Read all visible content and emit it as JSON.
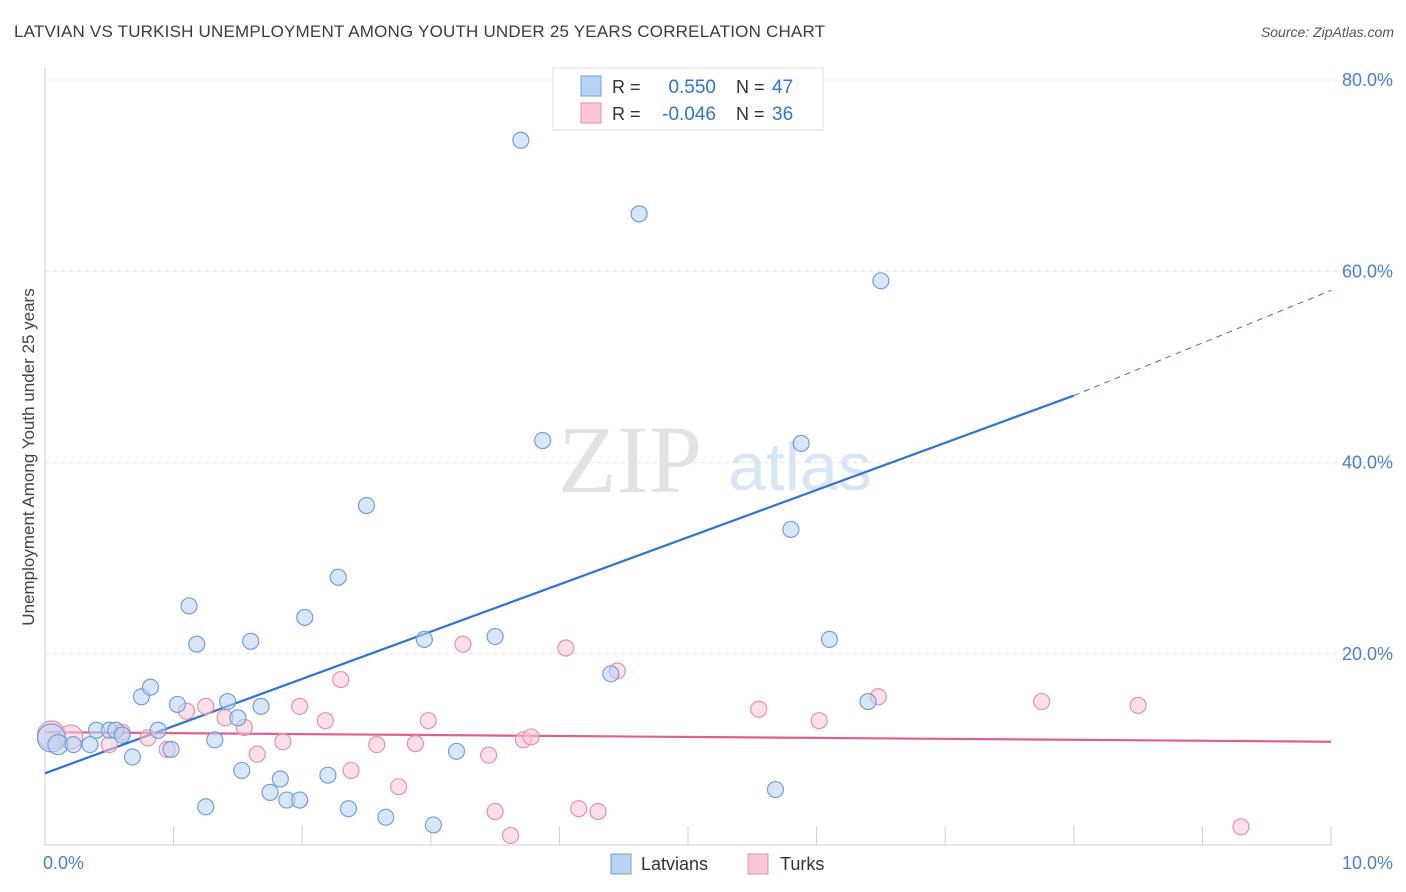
{
  "title": "LATVIAN VS TURKISH UNEMPLOYMENT AMONG YOUTH UNDER 25 YEARS CORRELATION CHART",
  "source": "Source: ZipAtlas.com",
  "watermark": {
    "zip": "ZIP",
    "atlas": "atlas"
  },
  "colors": {
    "blue": "#6f9fdc",
    "blue_fill": "#b9d2f3",
    "blue_line": "#2f74d0",
    "pink": "#ea8fae",
    "pink_fill": "#f8c6d6",
    "pink_line": "#e0608a",
    "tick_text": "#4a7fcf",
    "grid": "#e3e3e3"
  },
  "legend": {
    "r_label": "R =",
    "n_label": "N =",
    "rows": [
      {
        "name": "Latvians",
        "r": "0.550",
        "n": "47"
      },
      {
        "name": "Turks",
        "r": "-0.046",
        "n": "36"
      }
    ]
  },
  "chart_data": {
    "type": "scatter",
    "title": "LATVIAN VS TURKISH UNEMPLOYMENT AMONG YOUTH UNDER 25 YEARS CORRELATION CHART",
    "xlabel": "",
    "ylabel": "Unemployment Among Youth under 25 years",
    "xlim": [
      0,
      10
    ],
    "ylim": [
      0,
      80
    ],
    "x_tick_labels": [
      {
        "value": 0,
        "label": "0.0%"
      },
      {
        "value": 10,
        "label": "10.0%"
      }
    ],
    "y_tick_labels": [
      {
        "value": 20,
        "label": "20.0%"
      },
      {
        "value": 40,
        "label": "40.0%"
      },
      {
        "value": 60,
        "label": "60.0%"
      },
      {
        "value": 80,
        "label": "80.0%"
      }
    ],
    "series": [
      {
        "name": "Latvians",
        "color": "blue",
        "trend": {
          "x0": 0,
          "y0": 7.5,
          "x1": 8.0,
          "y1": 47.0,
          "dash_to_x": 10,
          "dash_to_y": 58.0
        },
        "points": [
          [
            0.05,
            11.2,
            14
          ],
          [
            0.1,
            10.5,
            10
          ],
          [
            0.22,
            10.5,
            8
          ],
          [
            0.35,
            10.5,
            8
          ],
          [
            0.4,
            12.0,
            8
          ],
          [
            0.5,
            12.0,
            8
          ],
          [
            0.55,
            12.0,
            8
          ],
          [
            0.6,
            11.5,
            8
          ],
          [
            0.68,
            9.2,
            8
          ],
          [
            0.75,
            15.5,
            8
          ],
          [
            0.82,
            16.5,
            8
          ],
          [
            0.88,
            12.0,
            8
          ],
          [
            0.98,
            10.0,
            8
          ],
          [
            1.03,
            14.7,
            8
          ],
          [
            1.12,
            25.0,
            8
          ],
          [
            1.18,
            21.0,
            8
          ],
          [
            1.25,
            4.0,
            8
          ],
          [
            1.32,
            11.0,
            8
          ],
          [
            1.42,
            15.0,
            8
          ],
          [
            1.5,
            13.3,
            8
          ],
          [
            1.53,
            7.8,
            8
          ],
          [
            1.6,
            21.3,
            8
          ],
          [
            1.68,
            14.5,
            8
          ],
          [
            1.75,
            5.5,
            8
          ],
          [
            1.83,
            6.9,
            8
          ],
          [
            1.88,
            4.7,
            8
          ],
          [
            1.98,
            4.7,
            8
          ],
          [
            2.02,
            23.8,
            8
          ],
          [
            2.2,
            7.3,
            8
          ],
          [
            2.28,
            28.0,
            8
          ],
          [
            2.36,
            3.8,
            8
          ],
          [
            2.5,
            35.5,
            8
          ],
          [
            2.65,
            2.9,
            8
          ],
          [
            2.95,
            21.5,
            8
          ],
          [
            3.02,
            2.1,
            8
          ],
          [
            3.2,
            9.8,
            8
          ],
          [
            3.5,
            21.8,
            8
          ],
          [
            3.7,
            73.7,
            8
          ],
          [
            3.87,
            42.3,
            8
          ],
          [
            4.4,
            17.9,
            8
          ],
          [
            4.62,
            66.0,
            8
          ],
          [
            5.68,
            5.8,
            8
          ],
          [
            5.8,
            33.0,
            8
          ],
          [
            5.88,
            42.0,
            8
          ],
          [
            6.1,
            21.5,
            8
          ],
          [
            6.4,
            15.0,
            8
          ],
          [
            6.5,
            59.0,
            8
          ]
        ]
      },
      {
        "name": "Turks",
        "color": "pink",
        "trend": {
          "x0": 0,
          "y0": 11.8,
          "x1": 10,
          "y1": 10.8
        },
        "points": [
          [
            0.05,
            11.5,
            14
          ],
          [
            0.2,
            11.3,
            12
          ],
          [
            0.5,
            10.5,
            8
          ],
          [
            0.6,
            11.8,
            8
          ],
          [
            0.8,
            11.2,
            8
          ],
          [
            0.95,
            10.0,
            8
          ],
          [
            1.1,
            14.0,
            8
          ],
          [
            1.25,
            14.5,
            8
          ],
          [
            1.4,
            13.3,
            8
          ],
          [
            1.55,
            12.3,
            8
          ],
          [
            1.65,
            9.5,
            8
          ],
          [
            1.85,
            10.8,
            8
          ],
          [
            1.98,
            14.5,
            8
          ],
          [
            2.18,
            13.0,
            8
          ],
          [
            2.3,
            17.3,
            8
          ],
          [
            2.38,
            7.8,
            8
          ],
          [
            2.58,
            10.5,
            8
          ],
          [
            2.75,
            6.1,
            8
          ],
          [
            2.88,
            10.6,
            8
          ],
          [
            2.98,
            13.0,
            8
          ],
          [
            3.25,
            21.0,
            8
          ],
          [
            3.45,
            9.4,
            8
          ],
          [
            3.5,
            3.5,
            8
          ],
          [
            3.62,
            1.0,
            8
          ],
          [
            3.72,
            11.0,
            8
          ],
          [
            3.78,
            11.3,
            8
          ],
          [
            4.05,
            20.6,
            8
          ],
          [
            4.15,
            3.8,
            8
          ],
          [
            4.3,
            3.5,
            8
          ],
          [
            4.45,
            18.2,
            8
          ],
          [
            5.55,
            14.2,
            8
          ],
          [
            6.02,
            13.0,
            8
          ],
          [
            6.48,
            15.5,
            8
          ],
          [
            7.75,
            15.0,
            8
          ],
          [
            8.5,
            14.6,
            8
          ],
          [
            9.3,
            1.9,
            8
          ]
        ]
      }
    ]
  }
}
